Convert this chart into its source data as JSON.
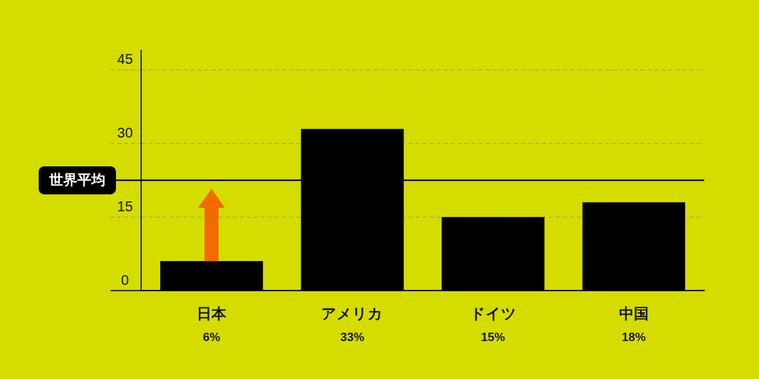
{
  "chart_data": {
    "type": "bar",
    "categories": [
      "日本",
      "アメリカ",
      "ドイツ",
      "中国"
    ],
    "values": [
      6,
      33,
      15,
      18
    ],
    "color": "#000000",
    "value_labels": [
      "6%",
      "33%",
      "15%",
      "18%"
    ],
    "ylim": [
      0,
      49
    ],
    "yticks": [
      0,
      15,
      30,
      45
    ],
    "grid": "y",
    "ref_lines": [
      {
        "axis": "y",
        "value": 22.5,
        "label": "世界平均",
        "color": "#000000"
      }
    ]
  }
}
